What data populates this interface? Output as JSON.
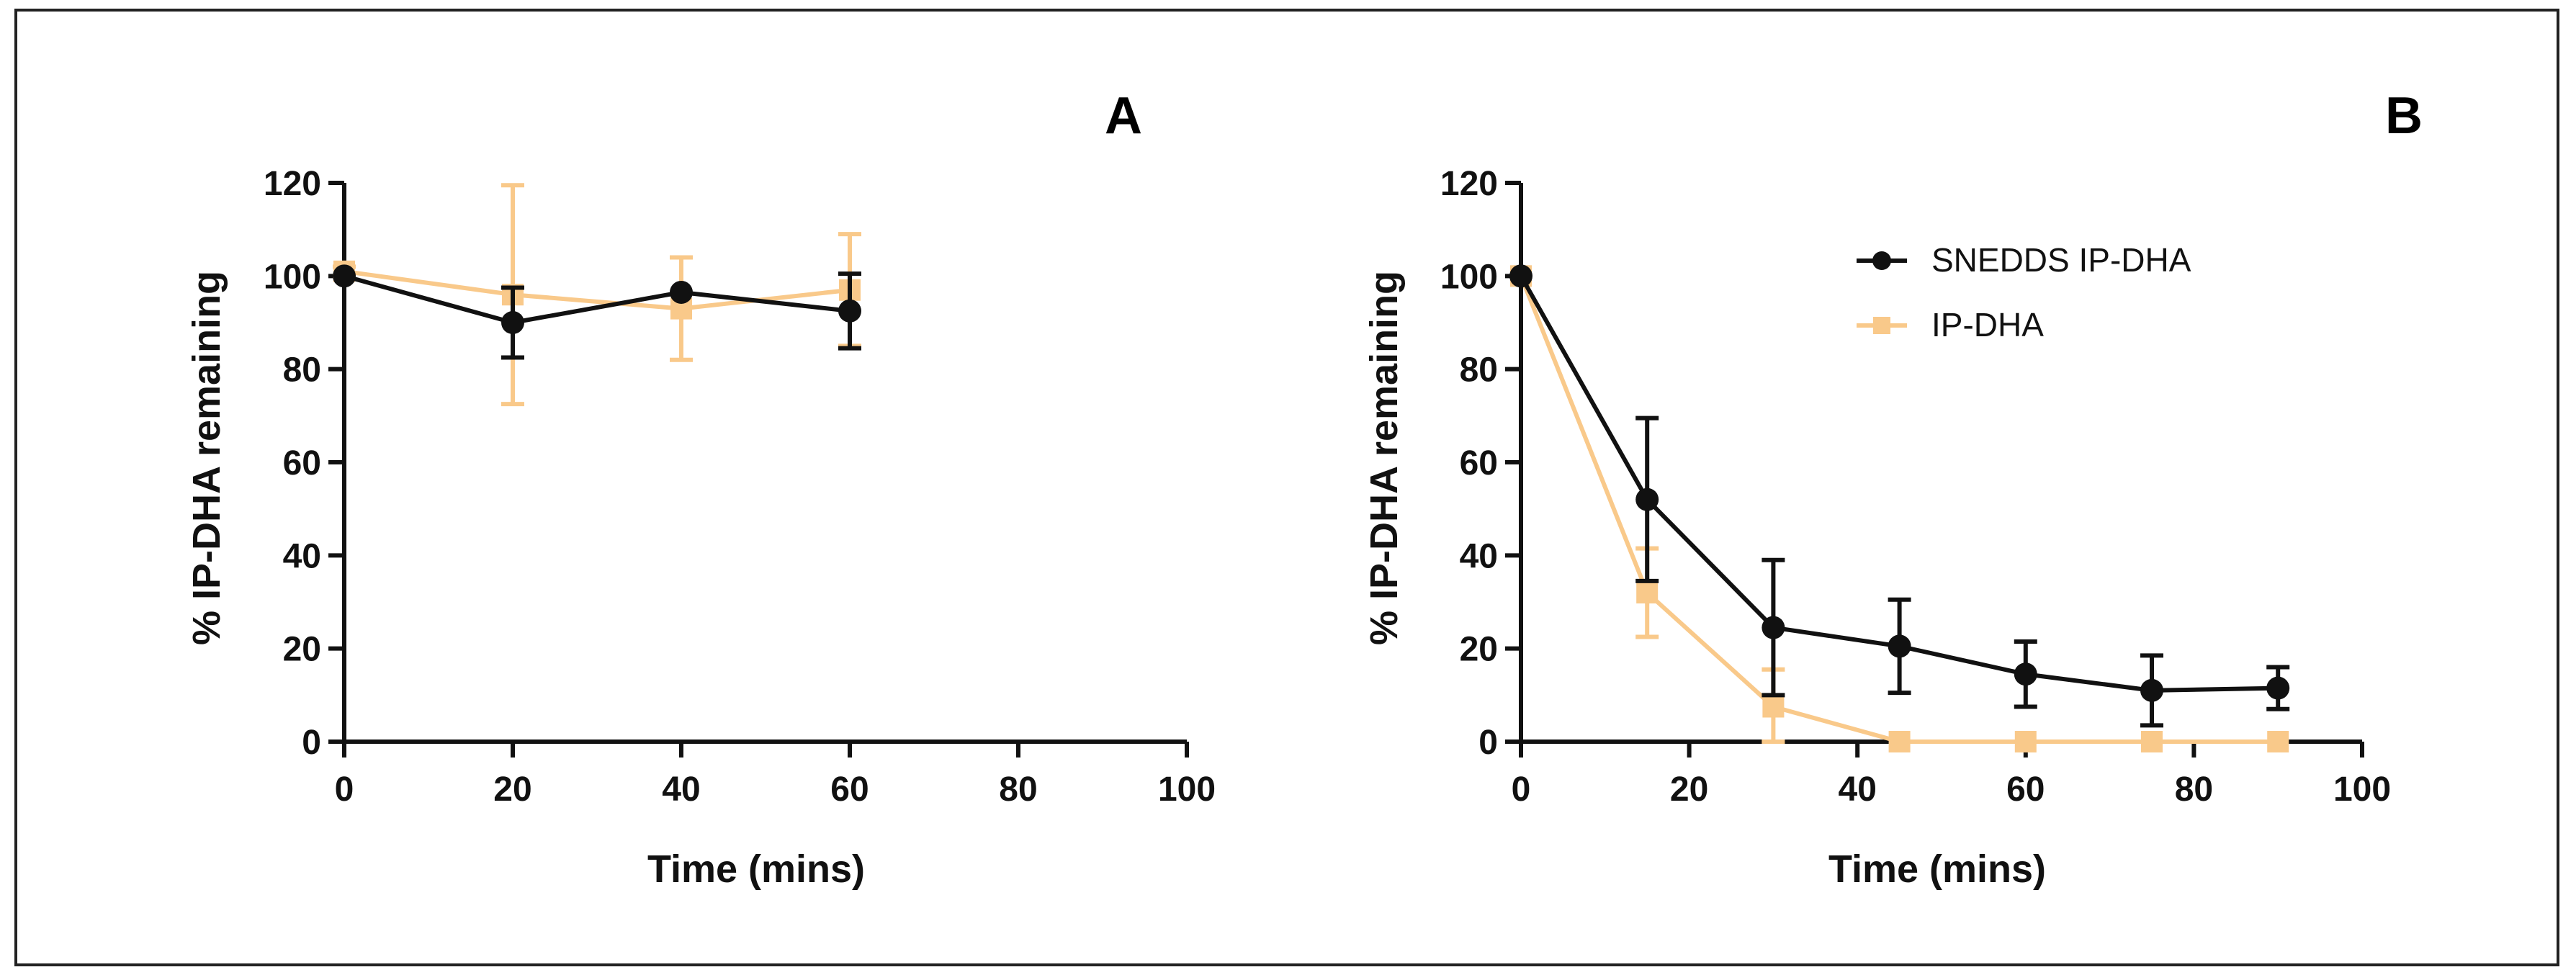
{
  "chart_data": [
    {
      "type": "line",
      "panel_label": "A",
      "title": "",
      "xlabel": "Time (mins)",
      "ylabel": "% IP-DHA remaining",
      "xlim": [
        0,
        100
      ],
      "ylim": [
        0,
        120
      ],
      "xticks": [
        "0",
        "20",
        "40",
        "60",
        "80",
        "100"
      ],
      "yticks": [
        "0",
        "20",
        "40",
        "60",
        "80",
        "100",
        "120"
      ],
      "legend": false,
      "series": [
        {
          "name": "IP-DHA",
          "color": "#f9c98a",
          "marker": "square",
          "x": [
            0,
            20,
            40,
            60
          ],
          "values": [
            101,
            96,
            93,
            97
          ],
          "error": [
            1,
            23.5,
            11,
            12
          ]
        },
        {
          "name": "SNEDDS IP-DHA",
          "color": "#111111",
          "marker": "circle",
          "x": [
            0,
            20,
            40,
            60
          ],
          "values": [
            100,
            90,
            96.5,
            92.5
          ],
          "error": [
            0,
            7.5,
            0,
            8
          ]
        }
      ]
    },
    {
      "type": "line",
      "panel_label": "B",
      "title": "",
      "xlabel": "Time (mins)",
      "ylabel": "% IP-DHA remaining",
      "xlim": [
        0,
        100
      ],
      "ylim": [
        0,
        120
      ],
      "xticks": [
        "0",
        "20",
        "40",
        "60",
        "80",
        "100"
      ],
      "yticks": [
        "0",
        "20",
        "40",
        "60",
        "80",
        "100",
        "120"
      ],
      "legend": true,
      "legend_position": "top-right",
      "series": [
        {
          "name": "IP-DHA",
          "color": "#f9c98a",
          "marker": "square",
          "x": [
            0,
            15,
            30,
            45,
            60,
            75,
            90
          ],
          "values": [
            100,
            32,
            7.5,
            0,
            0,
            0,
            0
          ],
          "error": [
            0,
            9.5,
            8,
            0,
            0,
            0,
            0
          ]
        },
        {
          "name": "SNEDDS IP-DHA",
          "color": "#111111",
          "marker": "circle",
          "x": [
            0,
            15,
            30,
            45,
            60,
            75,
            90
          ],
          "values": [
            100,
            52,
            24.5,
            20.5,
            14.5,
            11,
            11.5
          ],
          "error": [
            0,
            17.5,
            14.5,
            10,
            7,
            7.5,
            4.5
          ]
        }
      ]
    }
  ]
}
